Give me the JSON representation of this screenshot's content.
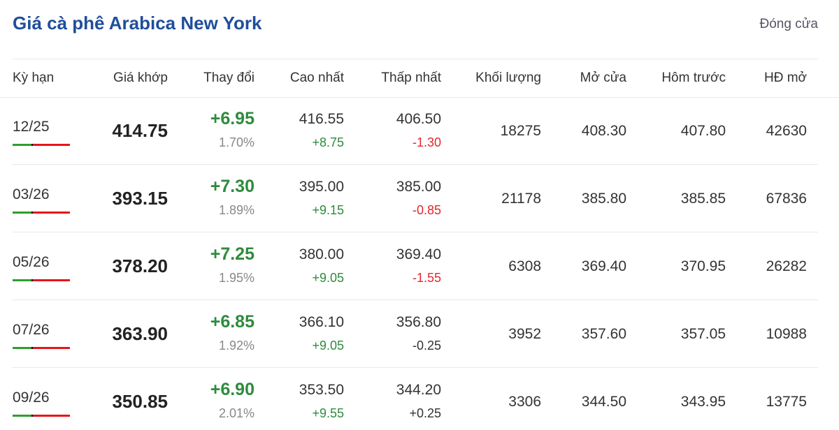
{
  "header": {
    "title": "Giá cà phê Arabica New York",
    "status": "Đóng cửa"
  },
  "columns": [
    "Kỳ hạn",
    "Giá khớp",
    "Thay đổi",
    "Cao nhất",
    "Thấp nhất",
    "Khối lượng",
    "Mở cửa",
    "Hôm trước",
    "HĐ mở"
  ],
  "colors": {
    "up": "#2e8b3d",
    "down": "#e0282c",
    "title": "#1f4e9c"
  },
  "rows": [
    {
      "term": "12/25",
      "range_fill": 0.33,
      "price": "414.75",
      "change": "+6.95",
      "pct": "1.70%",
      "high": "416.55",
      "high_chg": "+8.75",
      "high_dir": "green",
      "low": "406.50",
      "low_chg": "-1.30",
      "low_dir": "red",
      "volume": "18275",
      "open": "408.30",
      "prev": "407.80",
      "oi": "42630"
    },
    {
      "term": "03/26",
      "range_fill": 0.33,
      "price": "393.15",
      "change": "+7.30",
      "pct": "1.89%",
      "high": "395.00",
      "high_chg": "+9.15",
      "high_dir": "green",
      "low": "385.00",
      "low_chg": "-0.85",
      "low_dir": "red",
      "volume": "21178",
      "open": "385.80",
      "prev": "385.85",
      "oi": "67836"
    },
    {
      "term": "05/26",
      "range_fill": 0.33,
      "price": "378.20",
      "change": "+7.25",
      "pct": "1.95%",
      "high": "380.00",
      "high_chg": "+9.05",
      "high_dir": "green",
      "low": "369.40",
      "low_chg": "-1.55",
      "low_dir": "red",
      "volume": "6308",
      "open": "369.40",
      "prev": "370.95",
      "oi": "26282"
    },
    {
      "term": "07/26",
      "range_fill": 0.33,
      "price": "363.90",
      "change": "+6.85",
      "pct": "1.92%",
      "high": "366.10",
      "high_chg": "+9.05",
      "high_dir": "green",
      "low": "356.80",
      "low_chg": "-0.25",
      "low_dir": "neutral",
      "volume": "3952",
      "open": "357.60",
      "prev": "357.05",
      "oi": "10988"
    },
    {
      "term": "09/26",
      "range_fill": 0.33,
      "price": "350.85",
      "change": "+6.90",
      "pct": "2.01%",
      "high": "353.50",
      "high_chg": "+9.55",
      "high_dir": "green",
      "low": "344.20",
      "low_chg": "+0.25",
      "low_dir": "neutral",
      "volume": "3306",
      "open": "344.50",
      "prev": "343.95",
      "oi": "13775"
    }
  ]
}
